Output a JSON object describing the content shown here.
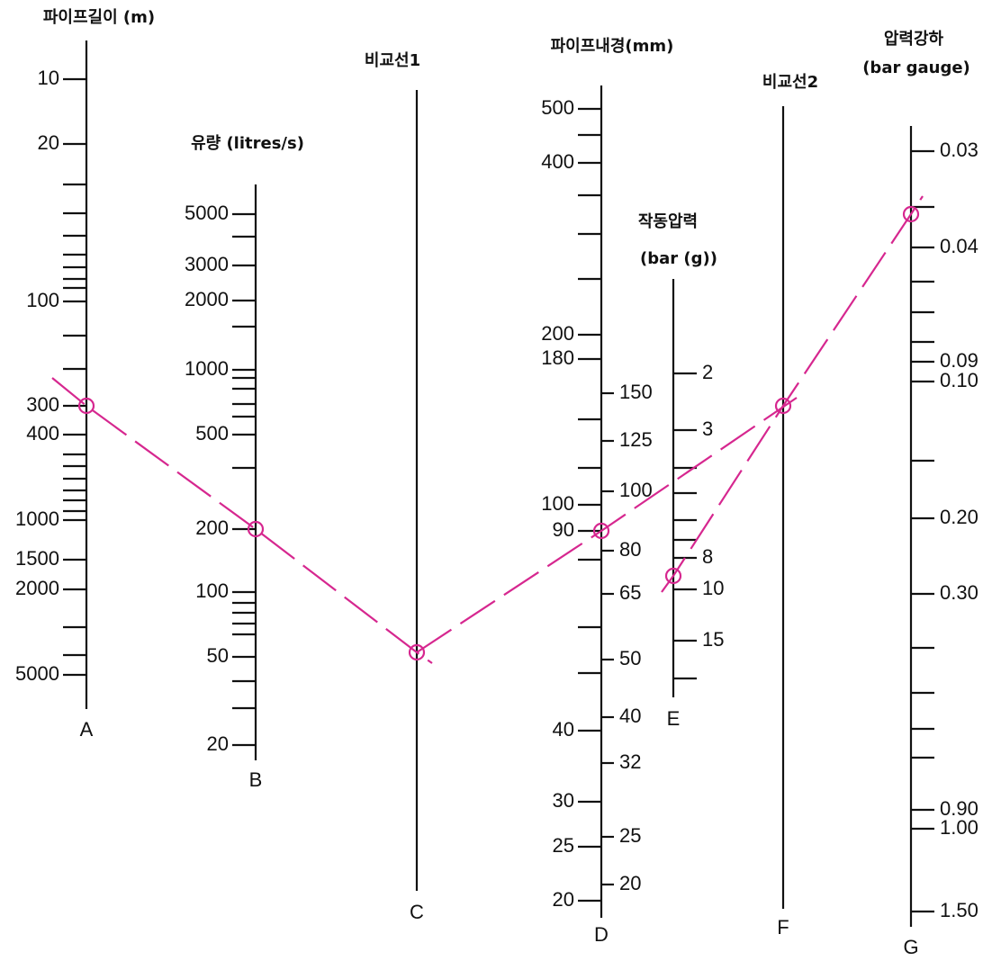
{
  "axes": [
    {
      "title": [
        "파이프길이 (m)"
      ],
      "letter": "A",
      "labels": [
        "10",
        "20",
        "100",
        "300",
        "400",
        "1000",
        "1500",
        "2000",
        "5000"
      ]
    },
    {
      "title": [
        "유량 (litres/s)"
      ],
      "letter": "B",
      "labels": [
        "5000",
        "3000",
        "2000",
        "1000",
        "500",
        "200",
        "100",
        "50",
        "20"
      ]
    },
    {
      "title": [
        "비교선1"
      ],
      "letter": "C",
      "labels": []
    },
    {
      "title": [
        "파이프내경(mm)"
      ],
      "letter": "D",
      "labels": [
        "500",
        "400",
        "200",
        "180",
        "100",
        "90",
        "40",
        "30",
        "25",
        "20"
      ],
      "labels_right": [
        "150",
        "125",
        "100",
        "80",
        "65",
        "50",
        "40",
        "32",
        "25",
        "20"
      ]
    },
    {
      "title": [
        "작동압력",
        "(bar (g))"
      ],
      "letter": "E",
      "labels": [
        "2",
        "3",
        "8",
        "10",
        "15"
      ]
    },
    {
      "title": [
        "비교선2"
      ],
      "letter": "F",
      "labels": []
    },
    {
      "title": [
        "압력강하",
        "(bar gauge)"
      ],
      "letter": "G",
      "labels": [
        "0.03",
        "0.04",
        "0.09",
        "0.10",
        "0.20",
        "0.30",
        "0.90",
        "1.00",
        "1.50"
      ]
    }
  ]
}
